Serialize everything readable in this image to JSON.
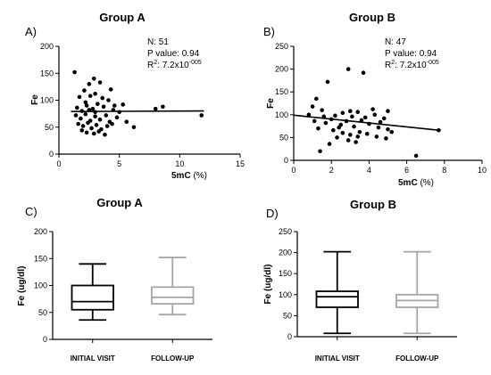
{
  "figure": {
    "background": "#ffffff"
  },
  "chart_data": [
    {
      "id": "A",
      "panel_label": "A)",
      "type": "scatter",
      "title": "Group A",
      "xlabel": "5mC",
      "xunit": "(%)",
      "ylabel": "Fe",
      "xlim": [
        0,
        15
      ],
      "ylim": [
        0,
        200
      ],
      "xticks": [
        0,
        5,
        10,
        15
      ],
      "yticks": [
        0,
        50,
        100,
        150,
        200
      ],
      "stats": {
        "n": "N: 51",
        "p": "P value: 0.94",
        "r2_prefix": "R",
        "r2_sup": "2",
        "r2_value": ": 7.2x10",
        "r2_exp": "-005"
      },
      "regression": {
        "x": [
          1.0,
          12.0
        ],
        "y": [
          79,
          80
        ]
      },
      "point_color": "#000000",
      "points": [
        [
          1.3,
          152
        ],
        [
          2.1,
          118
        ],
        [
          2.5,
          130
        ],
        [
          2.9,
          140
        ],
        [
          3.4,
          133
        ],
        [
          4.3,
          120
        ],
        [
          1.7,
          106
        ],
        [
          2.2,
          96
        ],
        [
          2.6,
          108
        ],
        [
          3.0,
          112
        ],
        [
          3.6,
          104
        ],
        [
          4.1,
          100
        ],
        [
          1.5,
          86
        ],
        [
          1.9,
          80
        ],
        [
          2.3,
          90
        ],
        [
          2.8,
          84
        ],
        [
          3.2,
          93
        ],
        [
          3.7,
          88
        ],
        [
          4.5,
          82
        ],
        [
          5.0,
          78
        ],
        [
          1.4,
          72
        ],
        [
          1.8,
          66
        ],
        [
          2.2,
          74
        ],
        [
          2.6,
          62
        ],
        [
          3.0,
          70
        ],
        [
          3.4,
          64
        ],
        [
          3.9,
          72
        ],
        [
          4.2,
          60
        ],
        [
          4.8,
          68
        ],
        [
          1.6,
          56
        ],
        [
          2.0,
          52
        ],
        [
          2.4,
          58
        ],
        [
          2.7,
          48
        ],
        [
          3.1,
          54
        ],
        [
          3.5,
          46
        ],
        [
          4.0,
          52
        ],
        [
          4.4,
          56
        ],
        [
          1.9,
          44
        ],
        [
          2.3,
          40
        ],
        [
          2.9,
          38
        ],
        [
          3.3,
          42
        ],
        [
          3.8,
          36
        ],
        [
          5.3,
          92
        ],
        [
          5.6,
          60
        ],
        [
          6.2,
          50
        ],
        [
          2.5,
          82
        ],
        [
          3.0,
          78
        ],
        [
          4.6,
          90
        ],
        [
          8.0,
          84
        ],
        [
          8.6,
          88
        ],
        [
          11.8,
          72
        ]
      ]
    },
    {
      "id": "B",
      "panel_label": "B)",
      "type": "scatter",
      "title": "Group B",
      "xlabel": "5mC",
      "xunit": "(%)",
      "ylabel": "Fe",
      "xlim": [
        0,
        10
      ],
      "ylim": [
        0,
        250
      ],
      "xticks": [
        0,
        2,
        4,
        6,
        8,
        10
      ],
      "yticks": [
        0,
        50,
        100,
        150,
        200,
        250
      ],
      "stats": {
        "n": "N: 47",
        "p": "P value: 0.94",
        "r2_prefix": "R",
        "r2_sup": "2",
        "r2_value": ": 7.2x10",
        "r2_exp": "-005"
      },
      "regression": {
        "x": [
          0.0,
          7.7
        ],
        "y": [
          99,
          66
        ]
      },
      "point_color": "#000000",
      "points": [
        [
          2.9,
          200
        ],
        [
          3.7,
          192
        ],
        [
          1.8,
          172
        ],
        [
          1.2,
          135
        ],
        [
          1.0,
          118
        ],
        [
          1.5,
          110
        ],
        [
          0.8,
          100
        ],
        [
          1.6,
          96
        ],
        [
          2.2,
          98
        ],
        [
          2.6,
          104
        ],
        [
          3.0,
          108
        ],
        [
          3.4,
          106
        ],
        [
          4.3,
          100
        ],
        [
          4.8,
          92
        ],
        [
          1.1,
          86
        ],
        [
          1.7,
          82
        ],
        [
          2.0,
          90
        ],
        [
          2.5,
          78
        ],
        [
          2.8,
          86
        ],
        [
          3.2,
          74
        ],
        [
          3.6,
          88
        ],
        [
          4.0,
          80
        ],
        [
          4.5,
          72
        ],
        [
          5.0,
          68
        ],
        [
          1.3,
          70
        ],
        [
          2.1,
          66
        ],
        [
          2.6,
          60
        ],
        [
          3.0,
          56
        ],
        [
          3.5,
          62
        ],
        [
          3.9,
          58
        ],
        [
          4.4,
          52
        ],
        [
          4.9,
          48
        ],
        [
          2.3,
          50
        ],
        [
          2.9,
          44
        ],
        [
          3.3,
          40
        ],
        [
          1.9,
          36
        ],
        [
          5.2,
          62
        ],
        [
          3.1,
          96
        ],
        [
          3.8,
          94
        ],
        [
          4.6,
          84
        ],
        [
          2.4,
          72
        ],
        [
          3.4,
          52
        ],
        [
          1.4,
          20
        ],
        [
          6.5,
          10
        ],
        [
          7.7,
          66
        ],
        [
          5.0,
          108
        ],
        [
          4.2,
          112
        ]
      ]
    },
    {
      "id": "C",
      "panel_label": "C)",
      "type": "box",
      "title": "Group A",
      "ylabel": "Fe (ug/dl)",
      "ylim": [
        0,
        200
      ],
      "yticks": [
        0,
        50,
        100,
        150,
        200
      ],
      "categories": [
        "INITIAL VISIT",
        "FOLLOW-UP"
      ],
      "boxes": [
        {
          "min": 36,
          "q1": 55,
          "median": 70,
          "q3": 100,
          "max": 140,
          "color": "#000000"
        },
        {
          "min": 46,
          "q1": 66,
          "median": 78,
          "q3": 97,
          "max": 152,
          "color": "#a6a6a6"
        }
      ]
    },
    {
      "id": "D",
      "panel_label": "D)",
      "type": "box",
      "title": "Group B",
      "ylabel": "Fe (ug/dl)",
      "ylim": [
        0,
        250
      ],
      "yticks": [
        0,
        50,
        100,
        150,
        200,
        250
      ],
      "categories": [
        "INITIAL VISIT",
        "FOLLOW-UP"
      ],
      "boxes": [
        {
          "min": 8,
          "q1": 70,
          "median": 95,
          "q3": 108,
          "max": 202,
          "color": "#000000"
        },
        {
          "min": 8,
          "q1": 70,
          "median": 86,
          "q3": 100,
          "max": 202,
          "color": "#a6a6a6"
        }
      ]
    }
  ]
}
